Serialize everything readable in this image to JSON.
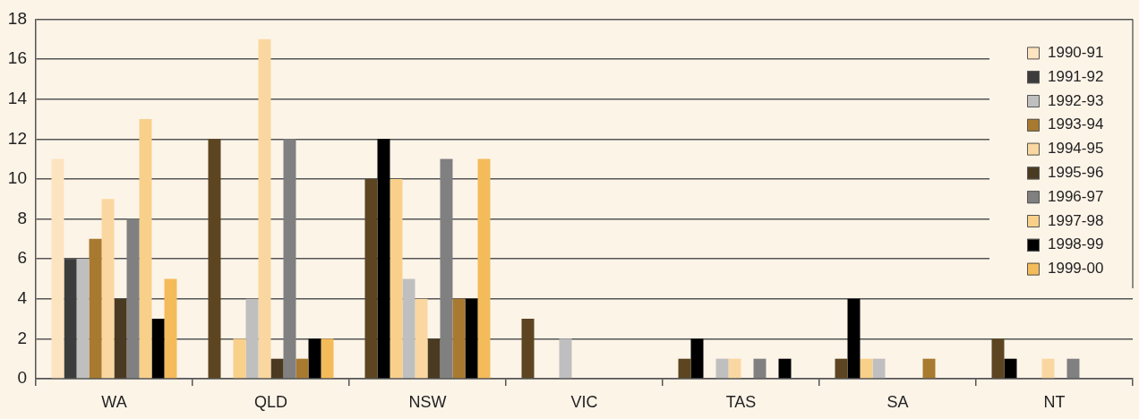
{
  "chart_data": {
    "type": "bar",
    "categories": [
      "WA",
      "QLD",
      "NSW",
      "VIC",
      "TAS",
      "SA",
      "NT"
    ],
    "series": [
      {
        "name": "1990-91",
        "color": "#fde4c0",
        "colors": [
          "#fde4c0",
          "#5c4520",
          "#5c4520",
          "#5c4520",
          "#5c4520",
          "#5c4520",
          "#5c4520"
        ],
        "values": [
          11,
          12,
          10,
          3,
          1,
          1,
          2
        ]
      },
      {
        "name": "1991-92",
        "color": "#3c3c3c",
        "colors": [
          "#3c3c3c",
          "#000000",
          "#000000",
          "#000000",
          "#000000",
          "#000000",
          "#000000"
        ],
        "values": [
          6,
          0,
          12,
          0,
          2,
          4,
          1
        ]
      },
      {
        "name": "1992-93",
        "color": "#bfbfbf",
        "colors": [
          "#bfbfbf",
          "#f8d08a",
          "#f8d08a",
          "#f8d08a",
          "#f8d08a",
          "#f8d08a",
          "#f8d08a"
        ],
        "values": [
          6,
          2,
          10,
          0,
          0,
          1,
          0
        ]
      },
      {
        "name": "1993-94",
        "color": "#a87a30",
        "colors": [
          "#a87a30",
          "#bfbfbf",
          "#bfbfbf",
          "#bfbfbf",
          "#bfbfbf",
          "#bfbfbf",
          "#bfbfbf"
        ],
        "values": [
          7,
          4,
          5,
          2,
          1,
          1,
          0
        ]
      },
      {
        "name": "1994-95",
        "color": "#fad7a0",
        "values": [
          9,
          17,
          4,
          0,
          1,
          0,
          1
        ]
      },
      {
        "name": "1995-96",
        "color": "#4a3a22",
        "values": [
          4,
          1,
          2,
          0,
          0,
          0,
          0
        ]
      },
      {
        "name": "1996-97",
        "color": "#808080",
        "values": [
          8,
          12,
          11,
          0,
          1,
          0,
          1
        ]
      },
      {
        "name": "1997-98",
        "color": "#f8d08a",
        "colors": [
          "#f8d08a",
          "#a87a30",
          "#a87a30",
          "#a87a30",
          "#a87a30",
          "#a87a30",
          "#a87a30"
        ],
        "values": [
          13,
          1,
          4,
          0,
          0,
          1,
          0
        ]
      },
      {
        "name": "1998-99",
        "color": "#000000",
        "values": [
          3,
          2,
          4,
          0,
          1,
          0,
          0
        ]
      },
      {
        "name": "1999-00",
        "color": "#f4bb5a",
        "values": [
          5,
          2,
          11,
          0,
          0,
          0,
          0
        ]
      }
    ],
    "ylim": [
      0,
      18
    ],
    "yticks": [
      0,
      2,
      4,
      6,
      8,
      10,
      12,
      14,
      16,
      18
    ],
    "grid": "y",
    "legend": "top right"
  }
}
